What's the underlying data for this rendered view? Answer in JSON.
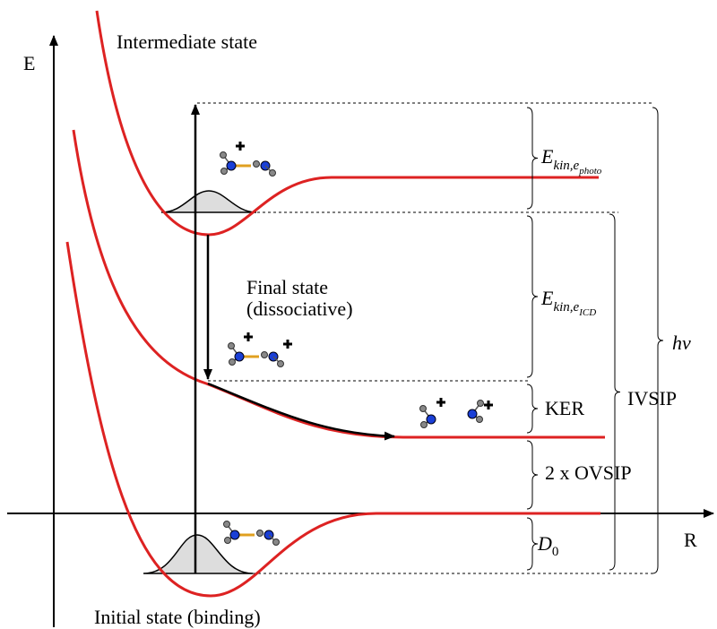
{
  "axes": {
    "y_label": "E",
    "x_label": "R"
  },
  "states": {
    "intermediate": "Intermediate state",
    "final": [
      "Final state",
      "(dissociative)"
    ],
    "initial": "Initial state (binding)"
  },
  "energies": {
    "e_photo": {
      "main": "E",
      "sub": "kin,e",
      "subsub": "photo"
    },
    "e_icd": {
      "main": "E",
      "sub": "kin,e",
      "subsub": "ICD"
    },
    "ker": "KER",
    "ovsip": "2 x OVSIP",
    "d0": {
      "main": "D",
      "sub": "0"
    },
    "ivsip": "IVSIP",
    "hv": "hν"
  }
}
